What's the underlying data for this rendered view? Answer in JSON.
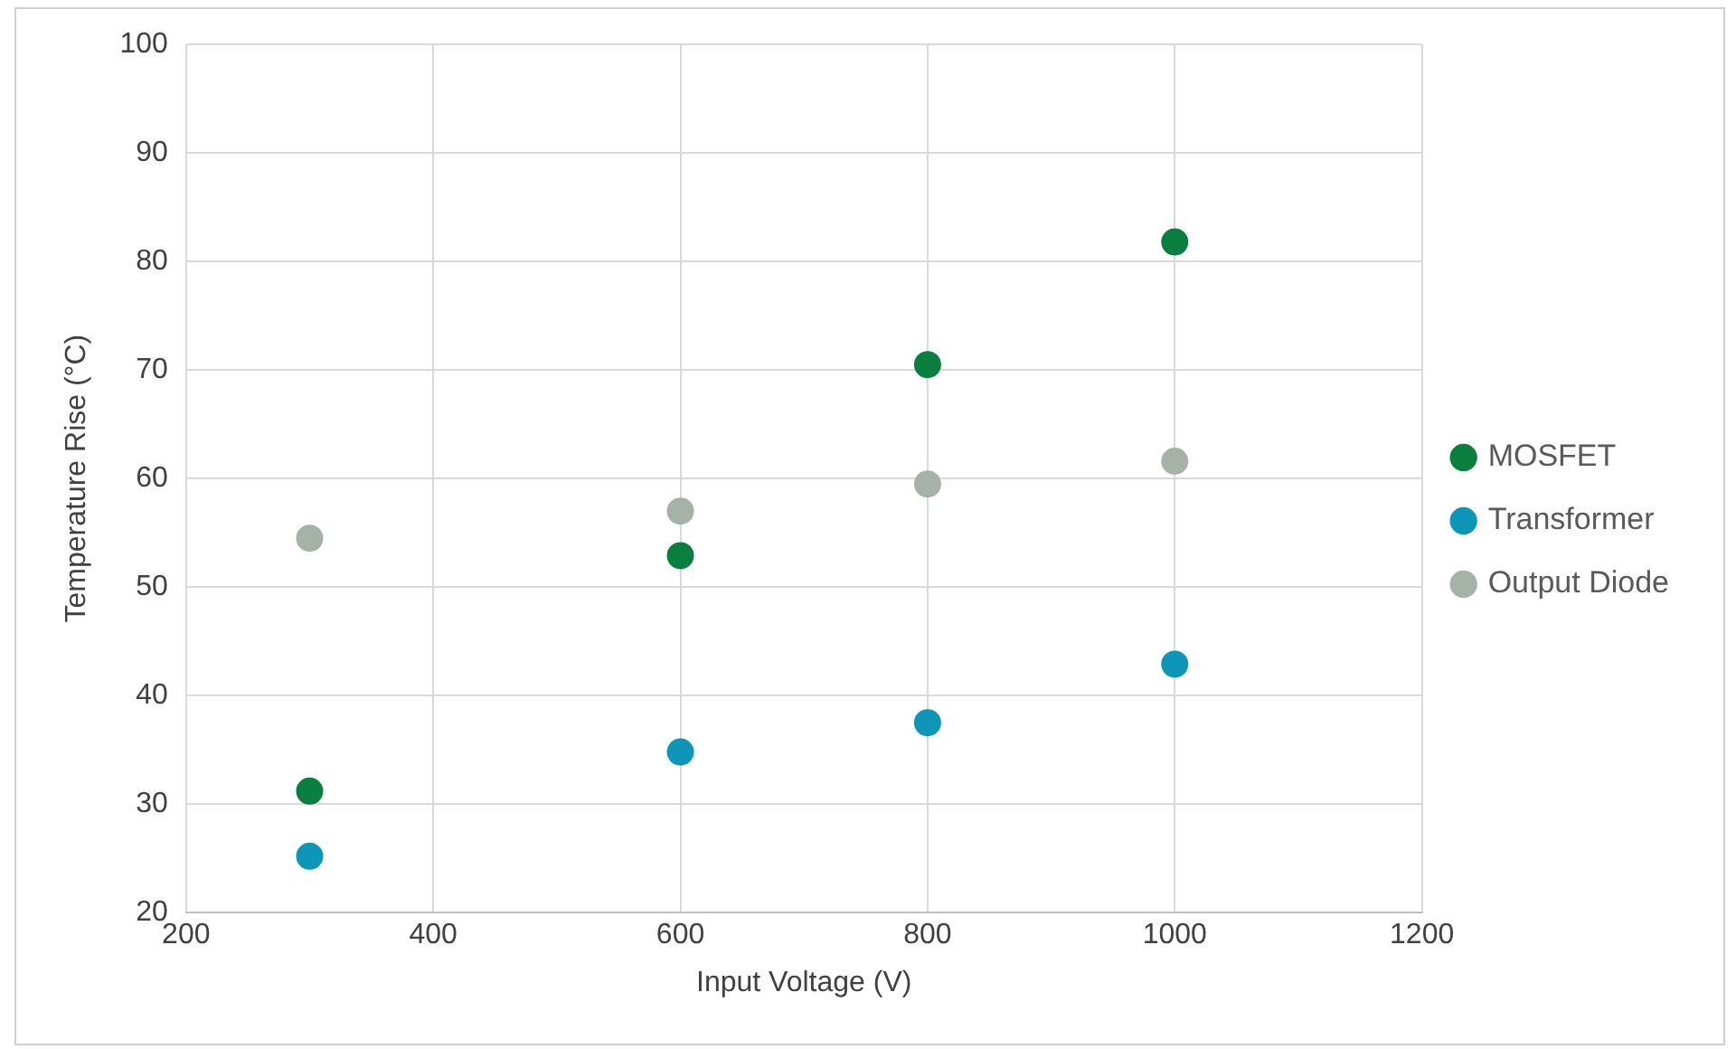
{
  "chart_data": {
    "type": "scatter",
    "xlabel": "Input Voltage (V)",
    "ylabel": "Temperature Rise (°C)",
    "x": [
      300,
      600,
      800,
      1000
    ],
    "series": [
      {
        "name": "MOSFET",
        "color": "#0a7f3f",
        "values": [
          31.2,
          52.9,
          70.5,
          81.8
        ]
      },
      {
        "name": "Transformer",
        "color": "#0e96b8",
        "values": [
          25.2,
          34.8,
          37.5,
          42.9
        ]
      },
      {
        "name": "Output Diode",
        "color": "#a6b1a8",
        "values": [
          54.5,
          57,
          59.5,
          61.6
        ]
      }
    ],
    "xlim": [
      200,
      1200
    ],
    "xticks": [
      200,
      400,
      600,
      800,
      1000,
      1200
    ],
    "ylim": [
      20,
      100
    ],
    "yticks": [
      20,
      30,
      40,
      50,
      60,
      70,
      80,
      90,
      100
    ],
    "grid": true,
    "legend": "right",
    "marker": "circle"
  }
}
